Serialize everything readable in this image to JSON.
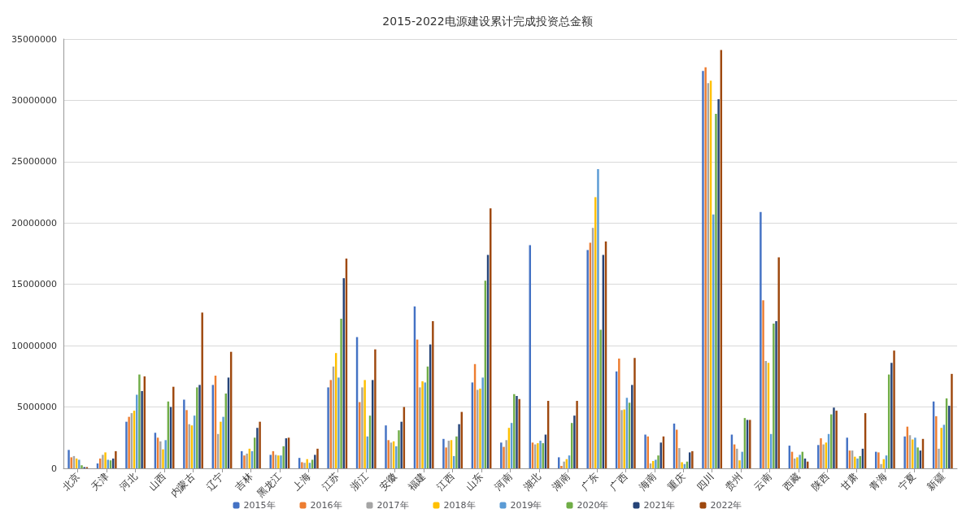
{
  "chart_data": {
    "type": "bar",
    "title": "2015-2022电源建设累计完成投资总金额",
    "categories": [
      "北京",
      "天津",
      "河北",
      "山西",
      "内蒙古",
      "辽宁",
      "吉林",
      "黑龙江",
      "上海",
      "江苏",
      "浙江",
      "安徽",
      "福建",
      "江西",
      "山东",
      "河南",
      "湖北",
      "湖南",
      "广东",
      "广西",
      "海南",
      "重庆",
      "四川",
      "贵州",
      "云南",
      "西藏",
      "陕西",
      "甘肃",
      "青海",
      "宁夏",
      "新疆"
    ],
    "ylim": [
      0,
      35000000
    ],
    "yticks": [
      0,
      5000000,
      10000000,
      15000000,
      20000000,
      25000000,
      30000000,
      35000000
    ],
    "grid": "y",
    "legend": "bottom",
    "series": [
      {
        "name": "2015年",
        "color": "#4472c4",
        "values": [
          1500000,
          400000,
          3800000,
          2900000,
          5600000,
          6800000,
          1400000,
          1100000,
          850000,
          6600000,
          10700000,
          3500000,
          13200000,
          2400000,
          7000000,
          2100000,
          18200000,
          900000,
          17800000,
          7900000,
          2750000,
          3650000,
          32400000,
          2750000,
          20900000,
          1850000,
          1900000,
          2500000,
          1350000,
          2600000,
          5450000
        ]
      },
      {
        "name": "2016年",
        "color": "#ed7d31",
        "values": [
          900000,
          800000,
          4200000,
          2500000,
          4750000,
          7550000,
          1050000,
          1400000,
          500000,
          7200000,
          5400000,
          2300000,
          10500000,
          1700000,
          8500000,
          1750000,
          2100000,
          200000,
          18400000,
          8950000,
          2600000,
          3150000,
          32700000,
          1950000,
          13700000,
          1350000,
          2450000,
          1450000,
          1300000,
          3400000,
          4250000
        ]
      },
      {
        "name": "2017年",
        "color": "#a5a5a5",
        "values": [
          1000000,
          1100000,
          4500000,
          2200000,
          3600000,
          2800000,
          1200000,
          1100000,
          450000,
          8300000,
          6600000,
          2100000,
          6600000,
          2250000,
          6400000,
          2300000,
          1950000,
          550000,
          19600000,
          4750000,
          400000,
          1650000,
          31400000,
          1600000,
          8750000,
          800000,
          1950000,
          1450000,
          350000,
          2700000,
          1600000
        ]
      },
      {
        "name": "2018年",
        "color": "#ffc000",
        "values": [
          800000,
          1300000,
          4700000,
          1550000,
          3500000,
          3800000,
          1600000,
          1050000,
          750000,
          9400000,
          7200000,
          2200000,
          7100000,
          2300000,
          6500000,
          3300000,
          2050000,
          750000,
          22100000,
          4800000,
          600000,
          500000,
          31600000,
          650000,
          8600000,
          900000,
          2100000,
          950000,
          750000,
          2350000,
          3300000
        ]
      },
      {
        "name": "2019年",
        "color": "#5b9bd5",
        "values": [
          700000,
          700000,
          6000000,
          2300000,
          4300000,
          4200000,
          1400000,
          1050000,
          450000,
          7400000,
          2600000,
          1800000,
          7000000,
          1000000,
          7400000,
          3700000,
          2250000,
          1050000,
          24400000,
          5750000,
          700000,
          350000,
          20700000,
          1350000,
          2800000,
          1100000,
          2800000,
          800000,
          1050000,
          2500000,
          3550000
        ]
      },
      {
        "name": "2020年",
        "color": "#70ad47",
        "values": [
          250000,
          650000,
          7650000,
          5450000,
          6600000,
          6100000,
          2500000,
          1800000,
          700000,
          12200000,
          4300000,
          3100000,
          8300000,
          2600000,
          15300000,
          6050000,
          2050000,
          3700000,
          11300000,
          5350000,
          1050000,
          550000,
          28900000,
          4100000,
          11800000,
          1350000,
          4400000,
          1000000,
          7650000,
          1700000,
          5700000
        ]
      },
      {
        "name": "2021年",
        "color": "#264478",
        "values": [
          100000,
          800000,
          6300000,
          5000000,
          6800000,
          7400000,
          3300000,
          2450000,
          1100000,
          15500000,
          7200000,
          3800000,
          10100000,
          3600000,
          17400000,
          5900000,
          2750000,
          4300000,
          17400000,
          6800000,
          2100000,
          1300000,
          30100000,
          3950000,
          12000000,
          800000,
          4950000,
          1600000,
          8600000,
          1450000,
          5100000
        ]
      },
      {
        "name": "2022年",
        "color": "#9e480e",
        "values": [
          100000,
          1400000,
          7500000,
          6650000,
          12700000,
          9500000,
          3800000,
          2500000,
          1600000,
          17100000,
          9700000,
          5000000,
          12000000,
          4600000,
          21200000,
          5650000,
          5500000,
          5500000,
          18500000,
          9000000,
          2600000,
          1400000,
          34100000,
          3950000,
          17200000,
          550000,
          4700000,
          4500000,
          9600000,
          2400000,
          7700000
        ]
      }
    ]
  }
}
